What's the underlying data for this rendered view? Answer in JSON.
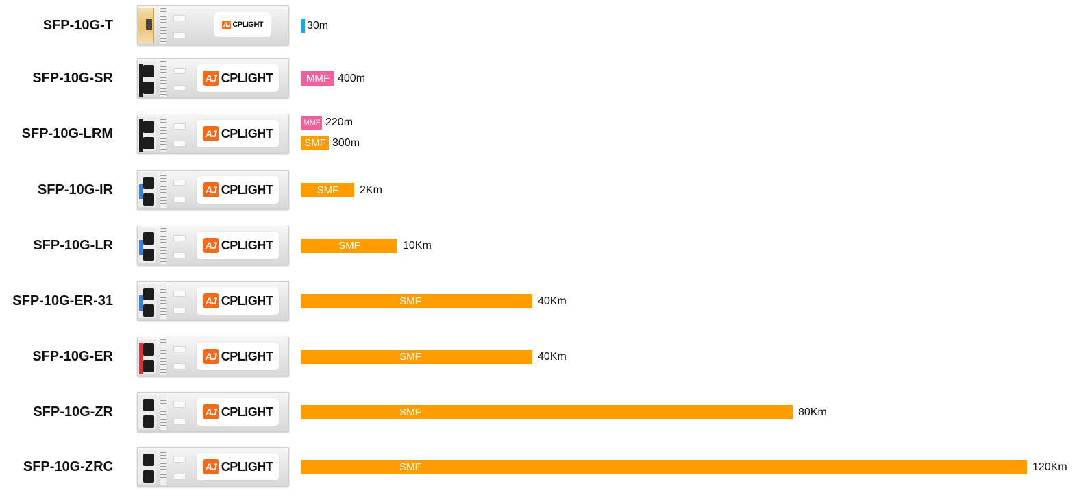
{
  "chart_data": {
    "type": "bar",
    "orientation": "horizontal",
    "title": "",
    "xlabel": "",
    "ylabel": "",
    "colors": {
      "SMF": "#ff9d00",
      "MMF": "#f0609a",
      "Copper": "#17a8e0"
    },
    "modules": [
      {
        "model": "SFP-10G-T",
        "latch": "none",
        "connector": "rj45",
        "links": [
          {
            "medium": "Copper",
            "label": "",
            "distance_text": "30m",
            "distance_m": 30
          }
        ]
      },
      {
        "model": "SFP-10G-SR",
        "latch": "black",
        "connector": "lc",
        "links": [
          {
            "medium": "MMF",
            "label": "MMF",
            "distance_text": "400m",
            "distance_m": 400
          }
        ]
      },
      {
        "model": "SFP-10G-LRM",
        "latch": "black",
        "connector": "lc",
        "links": [
          {
            "medium": "MMF",
            "label": "MMF",
            "distance_text": "220m",
            "distance_m": 220
          },
          {
            "medium": "SMF",
            "label": "SMF",
            "distance_text": "300m",
            "distance_m": 300
          }
        ]
      },
      {
        "model": "SFP-10G-IR",
        "latch": "blue",
        "connector": "lc",
        "links": [
          {
            "medium": "SMF",
            "label": "SMF",
            "distance_text": "2Km",
            "distance_m": 2000
          }
        ]
      },
      {
        "model": "SFP-10G-LR",
        "latch": "blue",
        "connector": "lc",
        "links": [
          {
            "medium": "SMF",
            "label": "SMF",
            "distance_text": "10Km",
            "distance_m": 10000
          }
        ]
      },
      {
        "model": "SFP-10G-ER-31",
        "latch": "blue",
        "connector": "lc",
        "links": [
          {
            "medium": "SMF",
            "label": "SMF",
            "distance_text": "40Km",
            "distance_m": 40000
          }
        ]
      },
      {
        "model": "SFP-10G-ER",
        "latch": "red",
        "connector": "lc",
        "links": [
          {
            "medium": "SMF",
            "label": "SMF",
            "distance_text": "40Km",
            "distance_m": 40000
          }
        ]
      },
      {
        "model": "SFP-10G-ZR",
        "latch": "white",
        "connector": "lc",
        "links": [
          {
            "medium": "SMF",
            "label": "SMF",
            "distance_text": "80Km",
            "distance_m": 80000
          }
        ]
      },
      {
        "model": "SFP-10G-ZRC",
        "latch": "white",
        "connector": "lc",
        "links": [
          {
            "medium": "SMF",
            "label": "SMF",
            "distance_text": "120Km",
            "distance_m": 120000
          }
        ]
      }
    ],
    "latch_colors": {
      "black": "#1d1d1d",
      "blue": "#3a7fd6",
      "red": "#d8333a",
      "white": "#f2f2f2"
    }
  },
  "brand": {
    "logo_mark": "AJ",
    "logo_text": "CPLIGHT"
  }
}
